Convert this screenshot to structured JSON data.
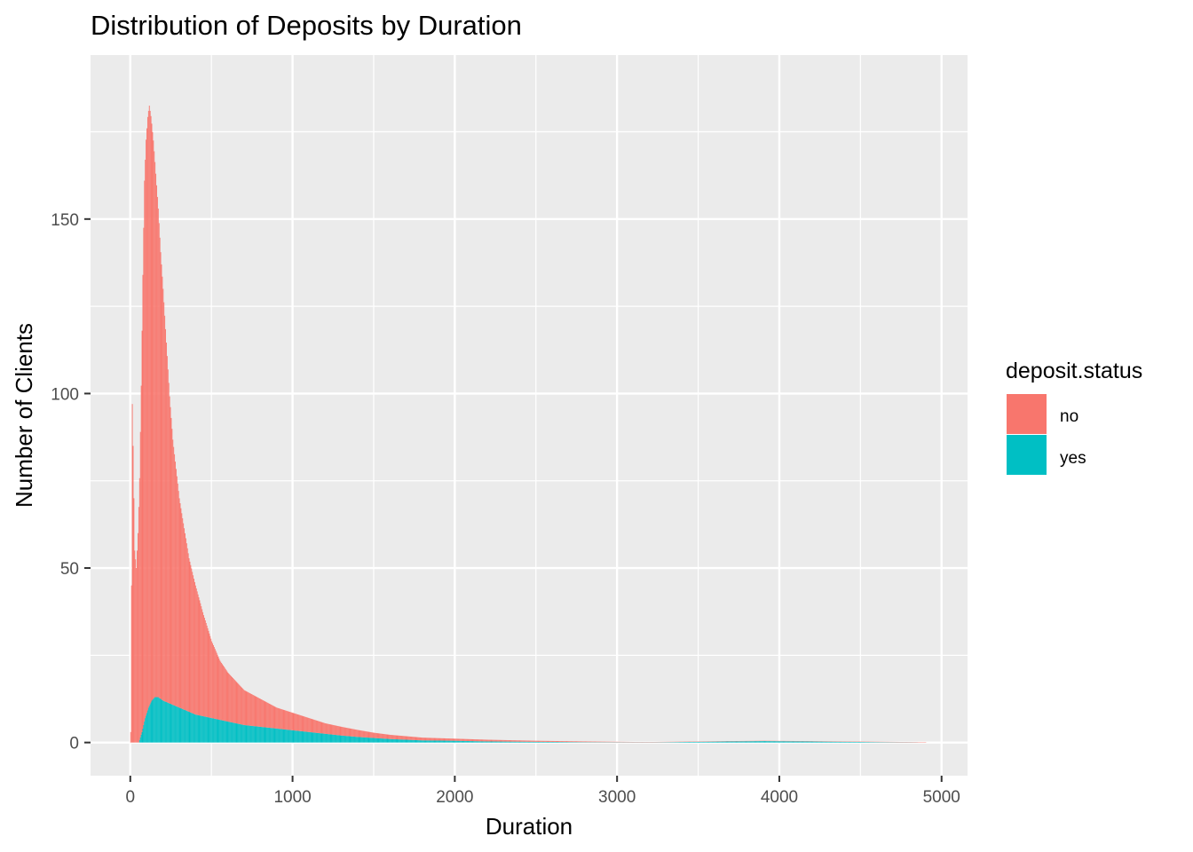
{
  "chart_data": {
    "type": "bar",
    "subtype": "stacked-histogram",
    "title": "Distribution of Deposits by Duration",
    "xlabel": "Duration",
    "ylabel": "Number of Clients",
    "xlim": [
      -245,
      5160
    ],
    "ylim": [
      -9.5,
      197
    ],
    "x_ticks": [
      0,
      1000,
      2000,
      3000,
      4000,
      5000
    ],
    "x_tick_labels": [
      "0",
      "1000",
      "2000",
      "3000",
      "4000",
      "5000"
    ],
    "y_ticks": [
      0,
      50,
      100,
      150
    ],
    "y_tick_labels": [
      "0",
      "50",
      "100",
      "150"
    ],
    "x_minor_ticks": [
      500,
      1500,
      2500,
      3500,
      4500
    ],
    "y_minor_ticks": [
      25,
      75,
      125,
      175
    ],
    "grid": true,
    "legend": {
      "title": "deposit.status",
      "position": "right",
      "entries": [
        {
          "label": "no",
          "color": "#F8766D"
        },
        {
          "label": "yes",
          "color": "#00BFC4"
        }
      ]
    },
    "colors": {
      "no": "#F8766D",
      "yes": "#00BFC4",
      "panel": "#EBEBEB",
      "grid": "#FFFFFF"
    },
    "series": [
      {
        "name": "no",
        "points": [
          [
            0,
            3
          ],
          [
            5,
            45
          ],
          [
            10,
            97
          ],
          [
            15,
            85
          ],
          [
            25,
            55
          ],
          [
            35,
            50
          ],
          [
            45,
            60
          ],
          [
            55,
            75
          ],
          [
            65,
            100
          ],
          [
            75,
            130
          ],
          [
            85,
            155
          ],
          [
            95,
            165
          ],
          [
            105,
            170
          ],
          [
            115,
            172
          ],
          [
            125,
            168
          ],
          [
            140,
            160
          ],
          [
            155,
            150
          ],
          [
            170,
            140
          ],
          [
            185,
            128
          ],
          [
            200,
            118
          ],
          [
            220,
            103
          ],
          [
            240,
            88
          ],
          [
            260,
            76
          ],
          [
            280,
            68
          ],
          [
            300,
            60
          ],
          [
            330,
            52
          ],
          [
            360,
            44
          ],
          [
            400,
            37
          ],
          [
            450,
            29
          ],
          [
            500,
            22
          ],
          [
            550,
            17
          ],
          [
            600,
            14
          ],
          [
            650,
            12
          ],
          [
            700,
            10
          ],
          [
            800,
            8
          ],
          [
            900,
            6
          ],
          [
            1000,
            5
          ],
          [
            1100,
            4
          ],
          [
            1200,
            3
          ],
          [
            1300,
            2.5
          ],
          [
            1400,
            2
          ],
          [
            1500,
            1.5
          ],
          [
            1600,
            1.2
          ],
          [
            1700,
            1
          ],
          [
            1800,
            0.8
          ],
          [
            2000,
            0.6
          ],
          [
            2200,
            0.5
          ],
          [
            2500,
            0.3
          ],
          [
            2800,
            0.2
          ],
          [
            3100,
            0.1
          ],
          [
            3500,
            0.1
          ],
          [
            3900,
            0.1
          ],
          [
            4900,
            0.1
          ]
        ]
      },
      {
        "name": "yes",
        "points": [
          [
            0,
            0
          ],
          [
            50,
            0
          ],
          [
            70,
            3
          ],
          [
            90,
            7
          ],
          [
            110,
            10
          ],
          [
            130,
            12
          ],
          [
            150,
            13
          ],
          [
            170,
            13
          ],
          [
            200,
            12
          ],
          [
            250,
            11
          ],
          [
            300,
            10
          ],
          [
            350,
            9
          ],
          [
            400,
            8
          ],
          [
            500,
            7
          ],
          [
            600,
            6
          ],
          [
            700,
            5
          ],
          [
            800,
            4.5
          ],
          [
            900,
            4
          ],
          [
            1000,
            3.5
          ],
          [
            1100,
            3
          ],
          [
            1200,
            2.5
          ],
          [
            1300,
            2
          ],
          [
            1400,
            1.6
          ],
          [
            1500,
            1.3
          ],
          [
            1600,
            1
          ],
          [
            1700,
            0.8
          ],
          [
            1800,
            0.6
          ],
          [
            2000,
            0.5
          ],
          [
            2200,
            0.3
          ],
          [
            2500,
            0.2
          ],
          [
            2800,
            0.1
          ],
          [
            3200,
            0.05
          ],
          [
            3900,
            0.4
          ],
          [
            4900,
            0
          ]
        ]
      }
    ]
  }
}
